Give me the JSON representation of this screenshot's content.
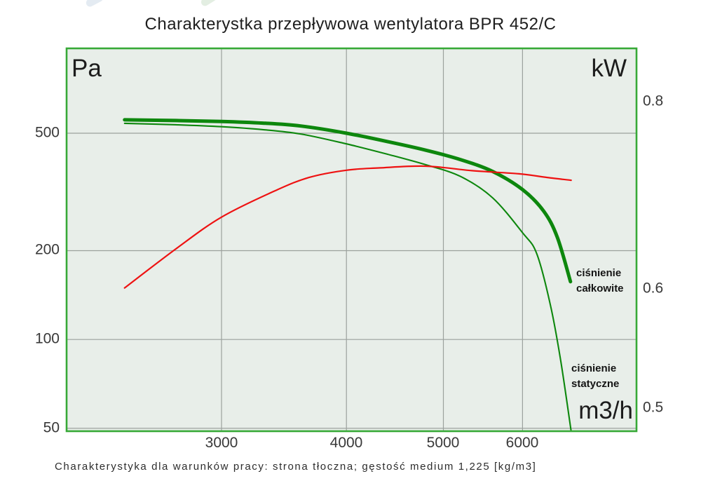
{
  "header": {
    "title": "Charakterystka przepływowa wentylatora BPR 452/C"
  },
  "footer": {
    "note": "Charakterystyka dla warunków pracy: strona tłoczna; gęstość medium 1,225 [kg/m3]"
  },
  "chart_data": {
    "type": "line",
    "title": "Charakterystka przepływowa wentylatora BPR 452/C",
    "footnote": "Charakterystyka dla warunków pracy: strona tłoczna; gęstość medium 1,225 [kg/m3]",
    "plot_background": "#e8eee9",
    "frame_color": "#37a937",
    "grid": {
      "color": "#9ba19d",
      "vertical_at": [
        3000,
        4000,
        5000,
        6000
      ],
      "horizontal_at_pa": [
        500,
        200,
        100,
        50
      ]
    },
    "x_axis": {
      "unit_label": "m3/h",
      "scale": "log",
      "min": 2100,
      "max": 7800,
      "ticks": [
        {
          "v": 3000,
          "label": "3000"
        },
        {
          "v": 4000,
          "label": "4000"
        },
        {
          "v": 5000,
          "label": "5000"
        },
        {
          "v": 6000,
          "label": "6000"
        }
      ]
    },
    "y_axis_left": {
      "unit_label": "Pa",
      "scale": "log",
      "min": 48.9,
      "max": 969,
      "ticks": [
        {
          "v": 500,
          "label": "500"
        },
        {
          "v": 200,
          "label": "200"
        },
        {
          "v": 100,
          "label": "100"
        },
        {
          "v": 50,
          "label": "50"
        }
      ]
    },
    "y_axis_right": {
      "unit_label": "kW",
      "scale": "log",
      "min": 0.4824,
      "max": 0.868,
      "ticks": [
        {
          "v": 0.8,
          "label": "0.8"
        },
        {
          "v": 0.6,
          "label": "0.6"
        },
        {
          "v": 0.5,
          "label": "0.5"
        }
      ]
    },
    "annotations": {
      "total": {
        "line1": "ciśnienie",
        "line2": "całkowite"
      },
      "static": {
        "line1": "ciśnienie",
        "line2": "statyczne"
      }
    },
    "series": [
      {
        "id": "cisnienie-calkowite",
        "axis": "pa",
        "color": "#0d870d",
        "stroke_width": 5,
        "points": [
          [
            2400,
            555
          ],
          [
            2700,
            552
          ],
          [
            3000,
            548
          ],
          [
            3300,
            541
          ],
          [
            3600,
            529
          ],
          [
            4000,
            500
          ],
          [
            4400,
            468
          ],
          [
            4800,
            438
          ],
          [
            5200,
            407
          ],
          [
            5600,
            371
          ],
          [
            6000,
            322
          ],
          [
            6300,
            272
          ],
          [
            6500,
            222
          ],
          [
            6700,
            157
          ]
        ]
      },
      {
        "id": "cisnienie-statyczne",
        "axis": "pa",
        "color": "#0d870d",
        "stroke_width": 2.1,
        "points": [
          [
            2400,
            540
          ],
          [
            2700,
            534
          ],
          [
            3000,
            526
          ],
          [
            3300,
            514
          ],
          [
            3600,
            497
          ],
          [
            4000,
            460
          ],
          [
            4400,
            424
          ],
          [
            4800,
            391
          ],
          [
            5200,
            357
          ],
          [
            5600,
            302
          ],
          [
            6000,
            230
          ],
          [
            6200,
            195
          ],
          [
            6400,
            130
          ],
          [
            6550,
            85
          ],
          [
            6710,
            49
          ]
        ]
      },
      {
        "id": "moc-kw",
        "axis": "kw",
        "color": "#ee1212",
        "stroke_width": 2.2,
        "points": [
          [
            2400,
            0.601
          ],
          [
            2700,
            0.638
          ],
          [
            3000,
            0.67
          ],
          [
            3400,
            0.698
          ],
          [
            3670,
            0.712
          ],
          [
            4000,
            0.72
          ],
          [
            4310,
            0.7225
          ],
          [
            4800,
            0.7245
          ],
          [
            5340,
            0.7195
          ],
          [
            5950,
            0.716
          ],
          [
            6350,
            0.712
          ],
          [
            6710,
            0.709
          ]
        ]
      }
    ]
  }
}
